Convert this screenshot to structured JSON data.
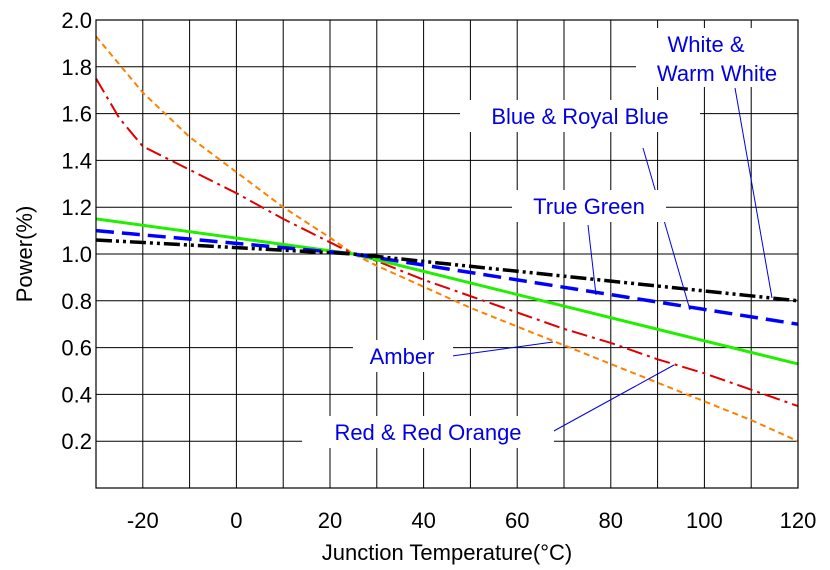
{
  "chart_data": {
    "type": "line",
    "title": "",
    "xlabel": "Junction Temperature(°C)",
    "ylabel": "Power(%)",
    "xlim": [
      -30,
      120
    ],
    "ylim": [
      0,
      2.0
    ],
    "grid": true,
    "x_ticks": [
      {
        "value": -20,
        "label": "-20"
      },
      {
        "value": 0,
        "label": "0"
      },
      {
        "value": 20,
        "label": "20"
      },
      {
        "value": 40,
        "label": "40"
      },
      {
        "value": 60,
        "label": "60"
      },
      {
        "value": 80,
        "label": "80"
      },
      {
        "value": 100,
        "label": "100"
      },
      {
        "value": 120,
        "label": "120"
      }
    ],
    "y_ticks": [
      {
        "value": 0.2,
        "label": "0.2"
      },
      {
        "value": 0.4,
        "label": "0.4"
      },
      {
        "value": 0.6,
        "label": "0.6"
      },
      {
        "value": 0.8,
        "label": "0.8"
      },
      {
        "value": 1.0,
        "label": "1.0"
      },
      {
        "value": 1.2,
        "label": "1.2"
      },
      {
        "value": 1.4,
        "label": "1.4"
      },
      {
        "value": 1.6,
        "label": "1.6"
      },
      {
        "value": 1.8,
        "label": "1.8"
      },
      {
        "value": 2.0,
        "label": "2.0"
      }
    ],
    "series": [
      {
        "color": "#ff8000",
        "style": "dashed",
        "x": [
          -30,
          -20,
          -10,
          0,
          10,
          20,
          25,
          30,
          40,
          50,
          60,
          70,
          80,
          90,
          100,
          110,
          120
        ],
        "y": [
          1.93,
          1.69,
          1.5,
          1.35,
          1.2,
          1.07,
          1.0,
          0.95,
          0.86,
          0.77,
          0.69,
          0.61,
          0.53,
          0.45,
          0.37,
          0.29,
          0.2
        ]
      },
      {
        "color": "#e00000",
        "style": "dashdot",
        "x": [
          -30,
          -25,
          -20,
          -10,
          0,
          10,
          20,
          25,
          30,
          40,
          50,
          60,
          70,
          80,
          90,
          100,
          110,
          120
        ],
        "y": [
          1.75,
          1.58,
          1.46,
          1.36,
          1.26,
          1.15,
          1.05,
          1.0,
          0.97,
          0.89,
          0.82,
          0.75,
          0.68,
          0.62,
          0.55,
          0.49,
          0.42,
          0.35
        ]
      },
      {
        "color": "#22ee00",
        "style": "solid",
        "x": [
          -30,
          25,
          120
        ],
        "y": [
          1.15,
          1.0,
          0.53
        ]
      },
      {
        "color": "#0000ff",
        "style": "longdash",
        "x": [
          -30,
          25,
          120
        ],
        "y": [
          1.1,
          1.0,
          0.7
        ]
      },
      {
        "color": "#000000",
        "style": "dashdotdot",
        "x": [
          -30,
          25,
          120
        ],
        "y": [
          1.06,
          1.0,
          0.8
        ]
      }
    ],
    "annotations": [
      {
        "text": "White &"
      },
      {
        "text": "Warm White"
      },
      {
        "text": "Blue & Royal Blue"
      },
      {
        "text": "True Green"
      },
      {
        "text": "Amber"
      },
      {
        "text": "Red & Red Orange"
      }
    ]
  }
}
